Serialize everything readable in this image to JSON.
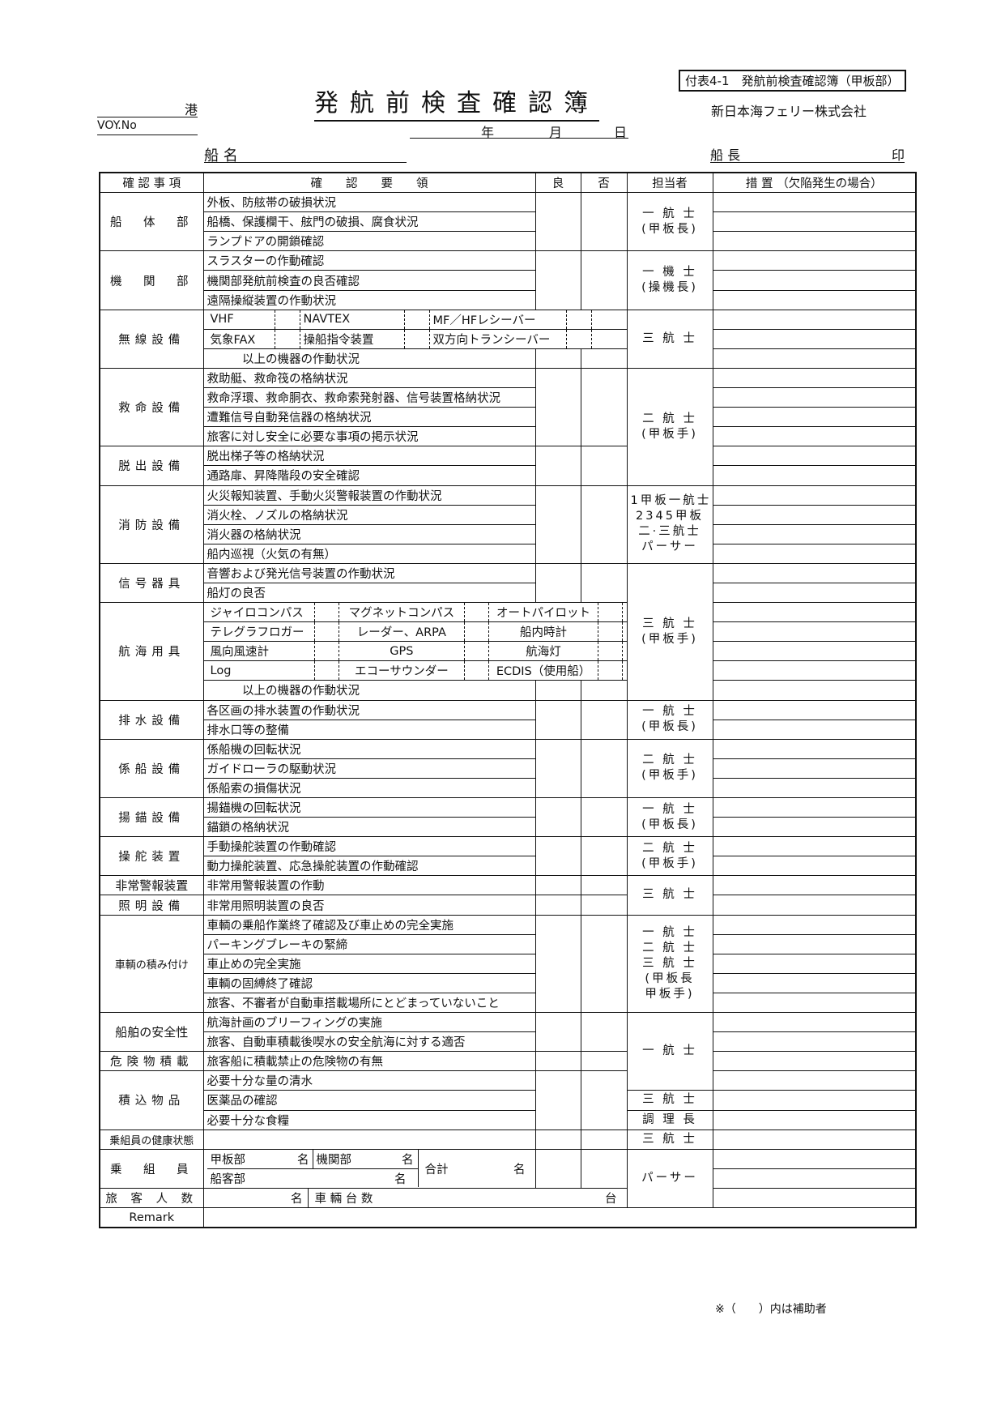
{
  "header": {
    "appendix_label": "付表4-1　発航前検査確認簿（甲板部）",
    "title": "発航前検査確認簿",
    "port_suffix": "港",
    "voy_label": "VOY.No",
    "date_year": "年",
    "date_month": "月",
    "date_day": "日",
    "company": "新日本海フェリー株式会社",
    "ship_name_label": "船 名",
    "captain_label": "船 長",
    "seal_label": "印"
  },
  "table": {
    "headers": {
      "category": "確 認 事 項",
      "procedure": "確　　認　　要　　領",
      "good": "良",
      "bad": "否",
      "staff": "担当者",
      "action": "措 置 （欠陥発生の場合）"
    },
    "sections": [
      {
        "label": "船　体　部",
        "items": [
          "外板、防舷帯の破損状況",
          "船橋、保護欄干、舷門の破損、腐食状況",
          "ランプドアの開鎖確認"
        ]
      },
      {
        "label": "機　関　部",
        "items": [
          "スラスターの作動確認",
          "機関部発航前検査の良否確認",
          "遠隔操縦装置の作動状況"
        ]
      },
      {
        "label": "無線設備",
        "items": [
          {
            "grid": [
              "VHF",
              "NAVTEX",
              "MF／HFレシーバー"
            ]
          },
          {
            "grid": [
              "気象FAX",
              "操船指令装置",
              "双方向トランシーバー"
            ]
          },
          "　　　以上の機器の作動状況"
        ]
      },
      {
        "label": "救命設備",
        "items": [
          "救助艇、救命筏の格納状況",
          "救命浮環、救命胴衣、救命索発射器、信号装置格納状況",
          "遭難信号自動発信器の格納状況",
          "旅客に対し安全に必要な事項の掲示状況"
        ]
      },
      {
        "label": "脱出設備",
        "items": [
          "脱出梯子等の格納状況",
          "通路扉、昇降階段の安全確認"
        ]
      },
      {
        "label": "消防設備",
        "items": [
          "火災報知装置、手動火災警報装置の作動状況",
          "消火栓、ノズルの格納状況",
          "消火器の格納状況",
          "船内巡視（火気の有無）"
        ]
      },
      {
        "label": "信号器具",
        "items": [
          "音響および発光信号装置の作動状況",
          "船灯の良否"
        ]
      },
      {
        "label": "航海用具",
        "items": [
          {
            "grid": [
              "ジャイロコンパス",
              "マグネットコンパス",
              "オートパイロット"
            ]
          },
          {
            "grid": [
              "テレグラフロガー",
              "レーダー、ARPA",
              "船内時計"
            ]
          },
          {
            "grid": [
              "風向風速計",
              "GPS",
              "航海灯"
            ]
          },
          {
            "grid": [
              "Log",
              "エコーサウンダー",
              "ECDIS（使用船）"
            ]
          },
          "　　　以上の機器の作動状況"
        ]
      },
      {
        "label": "排水設備",
        "items": [
          "各区画の排水装置の作動状況",
          "排水口等の整備"
        ]
      },
      {
        "label": "係船設備",
        "items": [
          "係船機の回転状況",
          "ガイドローラの駆動状況",
          "係船索の損傷状況"
        ]
      },
      {
        "label": "揚錨設備",
        "items": [
          "揚錨機の回転状況",
          "錨鎖の格納状況"
        ]
      },
      {
        "label": "操舵装置",
        "items": [
          "手動操舵装置の作動確認",
          "動力操舵装置、応急操舵装置の作動確認"
        ]
      },
      {
        "label": "非常警報装置",
        "items": [
          "非常用警報装置の作動"
        ]
      },
      {
        "label": "照明設備",
        "items": [
          "非常用照明装置の良否"
        ]
      },
      {
        "label": "車輌の積み付け",
        "items": [
          "車輌の乗船作業終了確認及び車止めの完全実施",
          "パーキングブレーキの緊締",
          "車止めの完全実施",
          "車輌の固縛終了確認",
          "旅客、不審者が自動車搭載場所にとどまっていないこと"
        ]
      },
      {
        "label": "船舶の安全性",
        "items": [
          "航海計画のブリーフィングの実施",
          "旅客、自動車積載後喫水の安全航海に対する適否"
        ]
      },
      {
        "label": "危険物積載",
        "items": [
          "旅客船に積載禁止の危険物の有無"
        ]
      },
      {
        "label": "積込物品",
        "items": [
          "必要十分な量の清水",
          "医薬品の確認",
          "必要十分な食糧"
        ]
      },
      {
        "label": "乗組員の健康状態",
        "items": [
          ""
        ]
      }
    ],
    "staff": [
      {
        "lines": [
          "一 航 士",
          "(甲板長)"
        ]
      },
      {
        "lines": [
          "一 機 士",
          "(操機長)"
        ]
      },
      {
        "lines": [
          "三 航 士"
        ]
      },
      {
        "lines": [
          "二 航 士",
          "(甲板手)"
        ]
      },
      {
        "lines": [
          "1甲板一航士",
          "2345甲板",
          "二·三航士",
          "パーサー"
        ]
      },
      {
        "lines": [
          "三 航 士",
          "(甲板手)"
        ]
      },
      {
        "lines": [
          "一 航 士",
          "(甲板長)"
        ]
      },
      {
        "lines": [
          "二 航 士",
          "(甲板手)"
        ]
      },
      {
        "lines": [
          "一 航 士",
          "(甲板長)"
        ]
      },
      {
        "lines": [
          "二 航 士",
          "(甲板手)"
        ]
      },
      {
        "lines": [
          "三 航 士"
        ]
      },
      {
        "lines": [
          "一 航 士",
          "二 航 士",
          "三 航 士",
          "(甲板長",
          " 甲板手)"
        ]
      },
      {
        "lines": [
          "一 航 士"
        ]
      },
      {
        "lines": [
          "三 航 士"
        ]
      },
      {
        "lines": [
          "調 理 長"
        ]
      },
      {
        "lines": [
          "三 航 士"
        ]
      },
      {
        "lines": [
          "パーサー"
        ]
      }
    ],
    "crew": {
      "label": "乗　組　員",
      "deck": "甲板部",
      "engine": "機関部",
      "passenger_dept": "船客部",
      "total": "合計",
      "unit": "名"
    },
    "passengers": {
      "label": "旅 客 人 数",
      "unit_people": "名",
      "vehicles": "車 輛 台 数",
      "unit_vehicles": "台"
    },
    "remark_label": "Remark"
  },
  "footer_note": "※（　　）内は補助者"
}
